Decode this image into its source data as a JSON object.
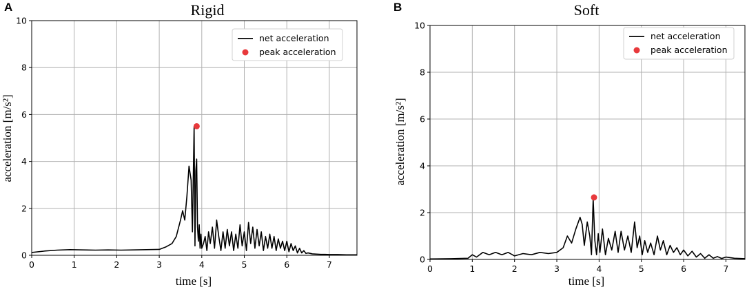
{
  "chart_data": [
    {
      "type": "line",
      "panel_label": "A",
      "title": "Rigid",
      "xlabel": "time [s]",
      "ylabel": "acceleration [m/s²]",
      "xlim": [
        0,
        7.65
      ],
      "ylim": [
        0,
        10
      ],
      "xticks": [
        0,
        1,
        2,
        3,
        4,
        5,
        6,
        7
      ],
      "yticks": [
        0,
        2,
        4,
        6,
        8,
        10
      ],
      "grid": true,
      "legend_position": "top-right",
      "legend": [
        "net acceleration",
        "peak acceleration"
      ],
      "series": [
        {
          "name": "net acceleration",
          "color": "#000000",
          "x": [
            0,
            0.3,
            0.6,
            0.9,
            1.2,
            1.5,
            1.8,
            2.1,
            2.4,
            2.7,
            3.0,
            3.15,
            3.3,
            3.4,
            3.5,
            3.55,
            3.6,
            3.65,
            3.7,
            3.75,
            3.78,
            3.82,
            3.84,
            3.86,
            3.88,
            3.9,
            3.92,
            3.94,
            3.96,
            3.98,
            4.0,
            4.04,
            4.08,
            4.12,
            4.16,
            4.2,
            4.25,
            4.3,
            4.35,
            4.4,
            4.45,
            4.5,
            4.55,
            4.6,
            4.65,
            4.7,
            4.75,
            4.8,
            4.85,
            4.9,
            4.95,
            5.0,
            5.05,
            5.1,
            5.15,
            5.2,
            5.25,
            5.3,
            5.35,
            5.4,
            5.45,
            5.5,
            5.55,
            5.6,
            5.65,
            5.7,
            5.75,
            5.8,
            5.85,
            5.9,
            5.95,
            6.0,
            6.05,
            6.1,
            6.15,
            6.2,
            6.25,
            6.3,
            6.35,
            6.4,
            6.45,
            6.5,
            6.6,
            6.7,
            6.8,
            6.9,
            7.0,
            7.2,
            7.4,
            7.65
          ],
          "values": [
            0.12,
            0.18,
            0.22,
            0.24,
            0.23,
            0.22,
            0.23,
            0.22,
            0.23,
            0.24,
            0.25,
            0.35,
            0.5,
            0.8,
            1.5,
            1.9,
            1.5,
            2.5,
            3.8,
            3.2,
            1.0,
            5.5,
            0.4,
            3.6,
            4.1,
            1.2,
            0.6,
            1.3,
            0.3,
            0.9,
            0.3,
            0.5,
            0.8,
            0.2,
            1.0,
            0.5,
            1.2,
            0.3,
            1.5,
            0.8,
            0.2,
            1.0,
            0.3,
            1.1,
            0.4,
            1.0,
            0.2,
            0.9,
            0.3,
            1.3,
            0.4,
            1.0,
            0.2,
            1.4,
            0.5,
            1.2,
            0.3,
            1.1,
            0.4,
            1.0,
            0.2,
            0.8,
            0.3,
            0.9,
            0.3,
            0.8,
            0.2,
            0.7,
            0.3,
            0.6,
            0.2,
            0.6,
            0.15,
            0.5,
            0.2,
            0.4,
            0.1,
            0.3,
            0.1,
            0.2,
            0.08,
            0.1,
            0.06,
            0.05,
            0.04,
            0.04,
            0.03,
            0.03,
            0.02,
            0.02
          ]
        }
      ],
      "peak": {
        "name": "peak acceleration",
        "x": 3.88,
        "y": 5.5,
        "color": "#e8393c"
      }
    },
    {
      "type": "line",
      "panel_label": "B",
      "title": "Soft",
      "xlabel": "time [s]",
      "ylabel": "acceleration [m/s²]",
      "xlim": [
        0,
        7.45
      ],
      "ylim": [
        0,
        10
      ],
      "xticks": [
        0,
        1,
        2,
        3,
        4,
        5,
        6,
        7
      ],
      "yticks": [
        0,
        2,
        4,
        6,
        8,
        10
      ],
      "grid": true,
      "legend_position": "top-right",
      "legend": [
        "net acceleration",
        "peak acceleration"
      ],
      "series": [
        {
          "name": "net acceleration",
          "color": "#000000",
          "x": [
            0,
            0.5,
            0.9,
            1.0,
            1.1,
            1.25,
            1.4,
            1.55,
            1.7,
            1.85,
            2.0,
            2.2,
            2.4,
            2.6,
            2.8,
            3.0,
            3.15,
            3.25,
            3.35,
            3.45,
            3.55,
            3.6,
            3.65,
            3.72,
            3.78,
            3.82,
            3.86,
            3.9,
            3.94,
            3.98,
            4.02,
            4.08,
            4.15,
            4.22,
            4.3,
            4.38,
            4.45,
            4.52,
            4.6,
            4.68,
            4.76,
            4.84,
            4.9,
            4.96,
            5.02,
            5.08,
            5.15,
            5.22,
            5.3,
            5.38,
            5.45,
            5.52,
            5.6,
            5.68,
            5.76,
            5.84,
            5.92,
            6.0,
            6.1,
            6.2,
            6.3,
            6.4,
            6.5,
            6.6,
            6.7,
            6.8,
            6.9,
            7.0,
            7.2,
            7.45
          ],
          "values": [
            0.02,
            0.03,
            0.05,
            0.2,
            0.1,
            0.3,
            0.2,
            0.3,
            0.2,
            0.3,
            0.15,
            0.25,
            0.2,
            0.3,
            0.25,
            0.3,
            0.5,
            1.0,
            0.7,
            1.3,
            1.8,
            1.5,
            0.6,
            1.6,
            1.0,
            0.2,
            2.6,
            0.8,
            0.2,
            1.1,
            0.3,
            1.3,
            0.2,
            0.9,
            0.4,
            1.2,
            0.3,
            1.2,
            0.4,
            1.0,
            0.3,
            1.6,
            0.5,
            1.0,
            0.2,
            0.8,
            0.3,
            0.7,
            0.2,
            1.0,
            0.4,
            0.8,
            0.2,
            0.6,
            0.3,
            0.5,
            0.2,
            0.4,
            0.15,
            0.35,
            0.1,
            0.25,
            0.05,
            0.2,
            0.05,
            0.12,
            0.04,
            0.1,
            0.05,
            0.03
          ]
        }
      ],
      "peak": {
        "name": "peak acceleration",
        "x": 3.88,
        "y": 2.65,
        "color": "#e8393c"
      }
    }
  ]
}
